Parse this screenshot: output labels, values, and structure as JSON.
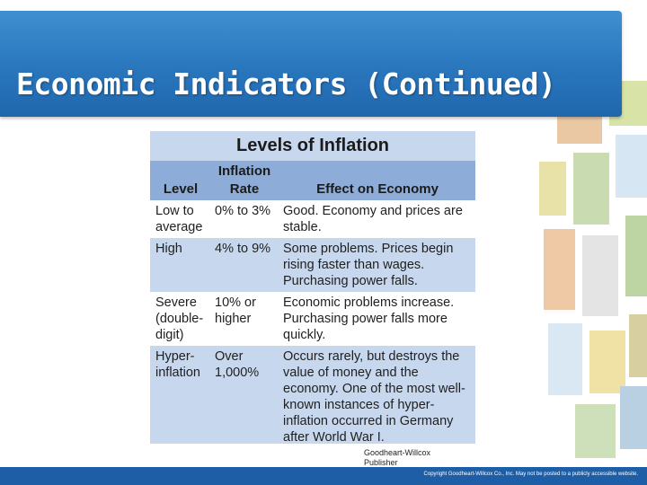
{
  "slide": {
    "title": "Economic Indicators (Continued)"
  },
  "table": {
    "title": "Levels of Inflation",
    "headers": {
      "level": "Level",
      "rate_line1": "Inflation",
      "rate_line2": "Rate",
      "effect": "Effect on Economy"
    },
    "rows": [
      {
        "level": "Low to average",
        "rate": "0% to 3%",
        "effect": "Good. Economy and prices are stable."
      },
      {
        "level": "High",
        "rate": "4% to 9%",
        "effect": "Some problems. Prices begin rising faster than wages. Purchasing power falls."
      },
      {
        "level": "Severe (double-digit)",
        "rate": "10% or higher",
        "effect": "Economic problems increase. Purchasing power falls more quickly."
      },
      {
        "level": "Hyper-inflation",
        "rate": "Over 1,000%",
        "effect": "Occurs rarely, but destroys the value of money and the economy. One of the most well-known instances of hyper-inflation occurred in Germany after World War I."
      }
    ]
  },
  "credit": {
    "line1": "Goodheart-Willcox",
    "line2": "Publisher"
  },
  "footer": {
    "copyright": "Copyright Goodheart-Willcox Co., Inc. May not be posted to a publicly accessible website."
  }
}
